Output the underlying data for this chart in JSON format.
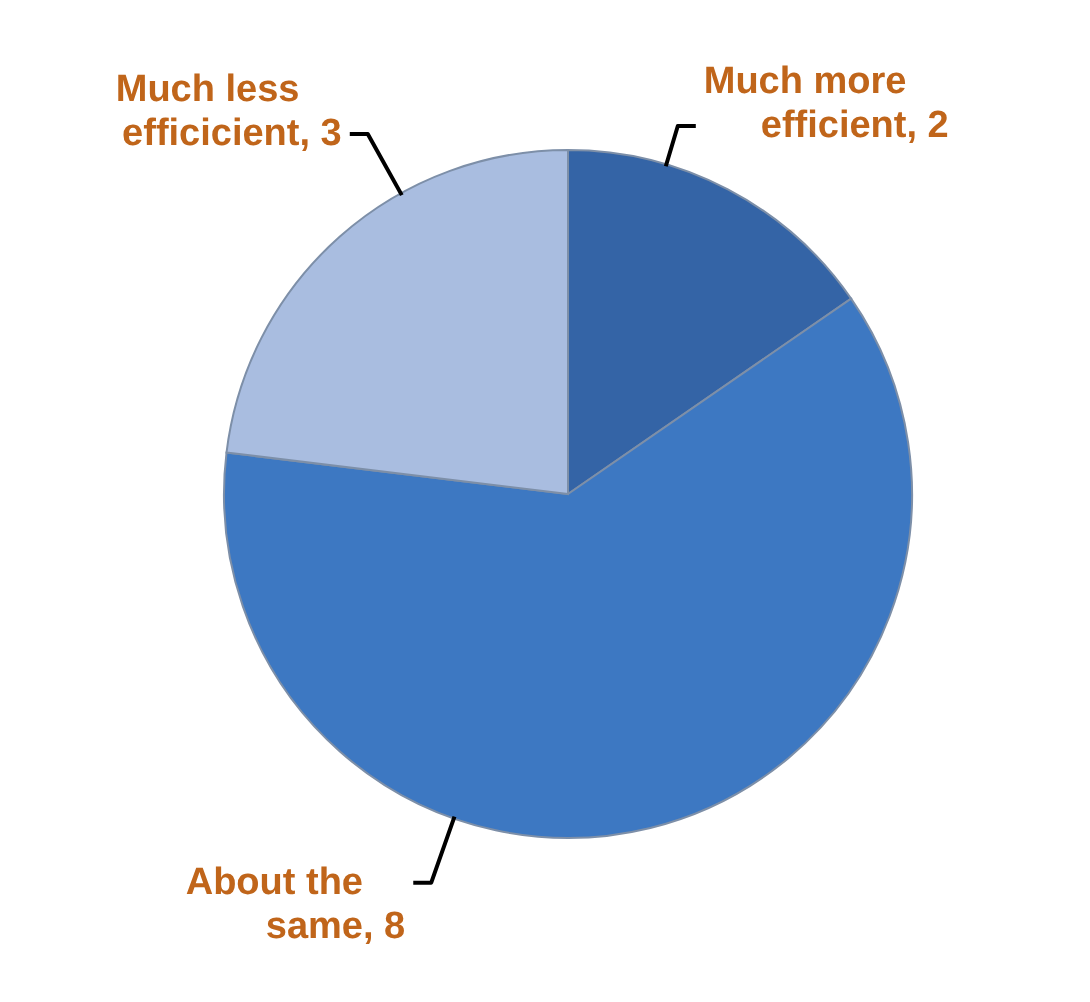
{
  "chart_data": {
    "type": "pie",
    "categories": [
      "Much more efficient",
      "About the same",
      "Much less efficicient"
    ],
    "values": [
      2,
      8,
      3
    ],
    "value_labels": [
      ", 2",
      ", 8",
      ", 3"
    ],
    "colors": [
      "#3464a6",
      "#3d78c2",
      "#a9bde0"
    ]
  }
}
